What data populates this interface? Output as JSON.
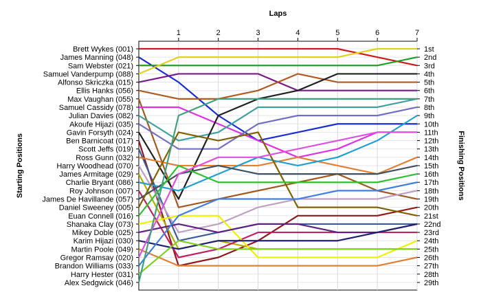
{
  "chart_data": {
    "type": "line",
    "title": "",
    "xlabel": "Laps",
    "ylabel_left": "Starting Positions",
    "ylabel_right": "Finishing Positions",
    "x_ticks": [
      "1",
      "2",
      "3",
      "4",
      "5",
      "6",
      "7"
    ],
    "y_range": [
      1,
      29
    ],
    "y_reversed": true,
    "grid": true,
    "starting_labels": [
      "Brett Wykes (001)",
      "James Manning (048)",
      "Sam Webster (021)",
      "Samuel Vanderpump (088)",
      "Alfonso Skriczka (015)",
      "Ellis Hanks (056)",
      "Max Vaughan (055)",
      "Samuel Cassidy (078)",
      "Julian Davies (082)",
      "Akoufe Hijazi (035)",
      "Gavin Forsyth (024)",
      "Ben Barnicoat (017)",
      "Scott Jeffs (019)",
      "Ross Gunn (032)",
      "Harry Woodhead (070)",
      "James Armitage (029)",
      "Charlie Bryant (086)",
      "Roy Johnson (007)",
      "James De Havillande (057)",
      "Daniel Sweeney (005)",
      "Euan Connell (016)",
      "Shanaka Clay (073)",
      "Mikey Doble (025)",
      "Karim Hijazi (030)",
      "Martin Poole (049)",
      "Gregor Ramsay (020)",
      "Brandon Williams (033)",
      "Harry Hester (031)",
      "Alex Sedgwick (046)"
    ],
    "finishing_labels": [
      "1st",
      "2nd",
      "3rd",
      "4th",
      "5th",
      "6th",
      "7th",
      "8th",
      "9th",
      "10th",
      "11th",
      "12th",
      "13th",
      "14th",
      "15th",
      "16th",
      "17th",
      "18th",
      "19th",
      "20th",
      "21st",
      "22nd",
      "23rd",
      "24th",
      "25th",
      "26th",
      "27th",
      "28th",
      "29th"
    ],
    "series": [
      {
        "start": "Brett Wykes (001)",
        "color": "#d01818",
        "positions": [
          1,
          1,
          1,
          1,
          1,
          1,
          2,
          3
        ]
      },
      {
        "start": "James Manning (048)",
        "color": "#1a2ed0",
        "positions": [
          2,
          5,
          9,
          12,
          11,
          10,
          10,
          10
        ]
      },
      {
        "start": "Sam Webster (021)",
        "color": "#20a020",
        "positions": [
          3,
          3,
          3,
          3,
          3,
          3,
          3,
          2
        ]
      },
      {
        "start": "Samuel Vanderpump (088)",
        "color": "#e0d020",
        "positions": [
          4,
          2,
          2,
          2,
          2,
          2,
          1,
          1
        ]
      },
      {
        "start": "Alfonso Skriczka (015)",
        "color": "#7a1a8a",
        "positions": [
          5,
          4,
          4,
          4,
          6,
          6,
          6,
          6
        ]
      },
      {
        "start": "Ellis Hanks (056)",
        "color": "#b05a20",
        "positions": [
          6,
          7,
          7,
          6,
          4,
          5,
          5,
          5
        ]
      },
      {
        "start": "Max Vaughan (055)",
        "color": "#a05a20",
        "positions": [
          7,
          20,
          19,
          18,
          17,
          16,
          18,
          19
        ]
      },
      {
        "start": "Samuel Cassidy (078)",
        "color": "#e030e0",
        "positions": [
          8,
          8,
          10,
          12,
          14,
          13,
          11,
          11
        ]
      },
      {
        "start": "Julian Davies (082)",
        "color": "#40a0a0",
        "positions": [
          9,
          12,
          11,
          8,
          8,
          8,
          8,
          7
        ]
      },
      {
        "start": "Akoufe Hijazi (035)",
        "color": "#7070c0",
        "positions": [
          10,
          13,
          13,
          10,
          9,
          9,
          9,
          8
        ]
      },
      {
        "start": "Gavin Forsyth (024)",
        "color": "#202020",
        "positions": [
          11,
          19,
          9,
          7,
          6,
          4,
          4,
          4
        ]
      },
      {
        "start": "Ben Barnicoat (017)",
        "color": "#901818",
        "positions": [
          12,
          27,
          26,
          24,
          21,
          21,
          21,
          20
        ]
      },
      {
        "start": "Scott Jeffs (019)",
        "color": "#3a5a9a",
        "positions": [
          13,
          24,
          23,
          22,
          22,
          22,
          22,
          22
        ]
      },
      {
        "start": "Ross Gunn (032)",
        "color": "#e08030",
        "positions": [
          14,
          15,
          15,
          15,
          14,
          15,
          16,
          14
        ]
      },
      {
        "start": "Harry Woodhead (070)",
        "color": "#c0a0c0",
        "positions": [
          15,
          23,
          22,
          20,
          19,
          19,
          19,
          18
        ]
      },
      {
        "start": "James Armitage (029)",
        "color": "#b0b000",
        "positions": [
          16,
          25,
          24,
          25,
          25,
          25,
          25,
          25
        ]
      },
      {
        "start": "Charlie Bryant (086)",
        "color": "#20a0d0",
        "positions": [
          17,
          18,
          16,
          14,
          15,
          14,
          12,
          9
        ]
      },
      {
        "start": "Roy Johnson (007)",
        "color": "#c02060",
        "positions": [
          18,
          26,
          25,
          23,
          23,
          23,
          23,
          23
        ]
      },
      {
        "start": "James De Havillande (057)",
        "color": "#405060",
        "positions": [
          19,
          16,
          15,
          16,
          16,
          16,
          16,
          15
        ]
      },
      {
        "start": "Daniel Sweeney (005)",
        "color": "#806000",
        "positions": [
          20,
          11,
          12,
          11,
          20,
          20,
          20,
          21
        ]
      },
      {
        "start": "Euan Connell (016)",
        "color": "#30c030",
        "positions": [
          21,
          15,
          17,
          17,
          17,
          17,
          17,
          16
        ]
      },
      {
        "start": "Shanaka Clay (073)",
        "color": "#f0f000",
        "positions": [
          22,
          21,
          21,
          26,
          26,
          26,
          26,
          24
        ]
      },
      {
        "start": "Mikey Doble (025)",
        "color": "#602080",
        "positions": [
          23,
          22,
          23,
          22,
          22,
          23,
          23,
          22
        ]
      },
      {
        "start": "Karim Hijazi (030)",
        "color": "#202070",
        "positions": [
          24,
          25,
          24,
          24,
          24,
          24,
          23,
          22
        ]
      },
      {
        "start": "Martin Poole (049)",
        "color": "#e08030",
        "positions": [
          25,
          27,
          27,
          27,
          27,
          27,
          27,
          26
        ]
      },
      {
        "start": "Gregor Ramsay (020)",
        "color": "#e050e0",
        "positions": [
          26,
          16,
          14,
          14,
          13,
          12,
          11,
          11
        ]
      },
      {
        "start": "Brandon Williams (033)",
        "color": "#4080e0",
        "positions": [
          27,
          21,
          19,
          19,
          19,
          18,
          18,
          17
        ]
      },
      {
        "start": "Harry Hester (031)",
        "color": "#80d020",
        "positions": [
          28,
          24,
          25,
          25,
          25,
          25,
          25,
          25
        ]
      },
      {
        "start": "Alex Sedgwick (046)",
        "color": "#40a080",
        "positions": [
          29,
          9,
          7,
          7,
          7,
          7,
          7,
          7
        ]
      }
    ]
  }
}
